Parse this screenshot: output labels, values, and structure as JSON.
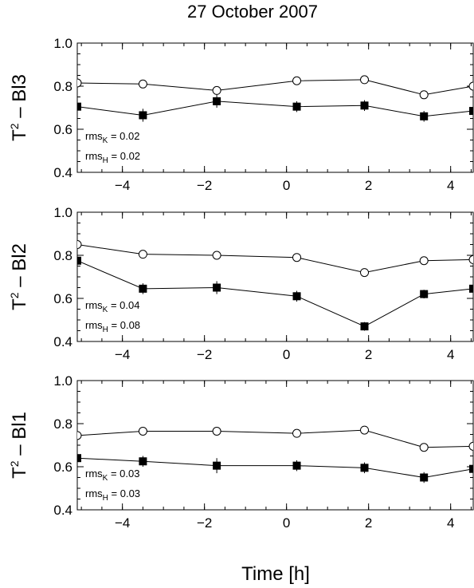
{
  "title": "27 October 2007",
  "xlabel": "Time [h]",
  "chart_data": [
    {
      "type": "line",
      "ylabel_main": "T",
      "ylabel_sup": "2",
      "ylabel_rest": " – Bl3",
      "xlim": [
        -5.1,
        4.55
      ],
      "ylim": [
        0.4,
        1.0
      ],
      "x_ticks": [
        -4,
        -2,
        0,
        2,
        4
      ],
      "x_tick_labels": [
        "−4",
        "−2",
        "0",
        "2",
        "4"
      ],
      "y_ticks": [
        0.4,
        0.6,
        0.8,
        1.0
      ],
      "y_tick_labels": [
        "0.4",
        "0.6",
        "0.8",
        "1.0"
      ],
      "x": [
        -5.1,
        -3.5,
        -1.7,
        0.25,
        1.9,
        3.35,
        4.55
      ],
      "series": [
        {
          "marker": "open-circle",
          "values": [
            0.815,
            0.81,
            0.78,
            0.825,
            0.83,
            0.76,
            0.8
          ]
        },
        {
          "marker": "filled-square",
          "values": [
            0.705,
            0.665,
            0.73,
            0.705,
            0.71,
            0.66,
            0.685
          ],
          "errors": [
            0.025,
            0.03,
            0.03,
            0.025,
            0.025,
            0.025,
            0.025
          ]
        }
      ],
      "annotations": [
        {
          "main": "rms",
          "sub": "K",
          "rest": " = 0.02"
        },
        {
          "main": "rms",
          "sub": "H",
          "rest": " = 0.02"
        }
      ]
    },
    {
      "type": "line",
      "ylabel_main": "T",
      "ylabel_sup": "2",
      "ylabel_rest": " – Bl2",
      "xlim": [
        -5.1,
        4.55
      ],
      "ylim": [
        0.4,
        1.0
      ],
      "x_ticks": [
        -4,
        -2,
        0,
        2,
        4
      ],
      "x_tick_labels": [
        "−4",
        "−2",
        "0",
        "2",
        "4"
      ],
      "y_ticks": [
        0.4,
        0.6,
        0.8,
        1.0
      ],
      "y_tick_labels": [
        "0.4",
        "0.6",
        "0.8",
        "1.0"
      ],
      "x": [
        -5.1,
        -3.5,
        -1.7,
        0.25,
        1.9,
        3.35,
        4.55
      ],
      "series": [
        {
          "marker": "open-circle",
          "values": [
            0.85,
            0.805,
            0.8,
            0.79,
            0.72,
            0.775,
            0.78
          ]
        },
        {
          "marker": "filled-square",
          "values": [
            0.775,
            0.645,
            0.65,
            0.61,
            0.47,
            0.62,
            0.645
          ],
          "errors": [
            0.025,
            0.025,
            0.03,
            0.025,
            0.02,
            0.02,
            0.025
          ]
        }
      ],
      "annotations": [
        {
          "main": "rms",
          "sub": "K",
          "rest": " = 0.04"
        },
        {
          "main": "rms",
          "sub": "H",
          "rest": " = 0.08"
        }
      ]
    },
    {
      "type": "line",
      "ylabel_main": "T",
      "ylabel_sup": "2",
      "ylabel_rest": " – Bl1",
      "xlim": [
        -5.1,
        4.55
      ],
      "ylim": [
        0.4,
        1.0
      ],
      "x_ticks": [
        -4,
        -2,
        0,
        2,
        4
      ],
      "x_tick_labels": [
        "−4",
        "−2",
        "0",
        "2",
        "4"
      ],
      "y_ticks": [
        0.4,
        0.6,
        0.8,
        1.0
      ],
      "y_tick_labels": [
        "0.4",
        "0.6",
        "0.8",
        "1.0"
      ],
      "x": [
        -5.1,
        -3.5,
        -1.7,
        0.25,
        1.9,
        3.35,
        4.55
      ],
      "series": [
        {
          "marker": "open-circle",
          "values": [
            0.745,
            0.765,
            0.765,
            0.755,
            0.77,
            0.69,
            0.695
          ]
        },
        {
          "marker": "filled-square",
          "values": [
            0.64,
            0.625,
            0.605,
            0.605,
            0.595,
            0.55,
            0.59
          ],
          "errors": [
            0.02,
            0.025,
            0.035,
            0.025,
            0.025,
            0.025,
            0.025
          ]
        }
      ],
      "annotations": [
        {
          "main": "rms",
          "sub": "K",
          "rest": " = 0.03"
        },
        {
          "main": "rms",
          "sub": "H",
          "rest": " = 0.03"
        }
      ]
    }
  ]
}
